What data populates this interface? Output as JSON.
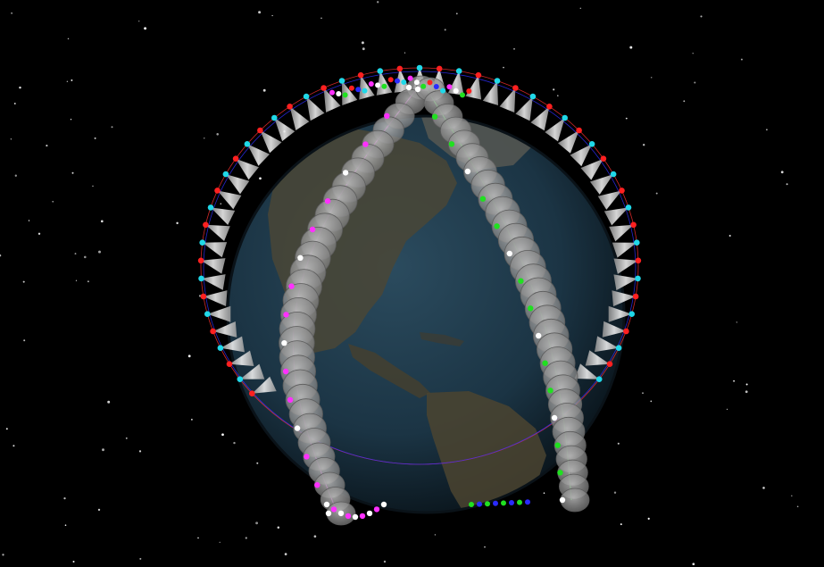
{
  "scene": {
    "background_color": "#000000",
    "earth": {
      "ocean_color": "#1d3a4f",
      "land_color": "#4a4636",
      "limb_color": "#0e1c26"
    },
    "orbit_path_colors": [
      "#ff3030",
      "#2e2eff",
      "#ff33ff",
      "#33ff33"
    ],
    "satellite_colors": [
      "#ff2020",
      "#20d8e8",
      "#2a2aff",
      "#20e020",
      "#ff30ff",
      "#ffffff"
    ],
    "coverage_cone_color": "#d8d8d8"
  }
}
